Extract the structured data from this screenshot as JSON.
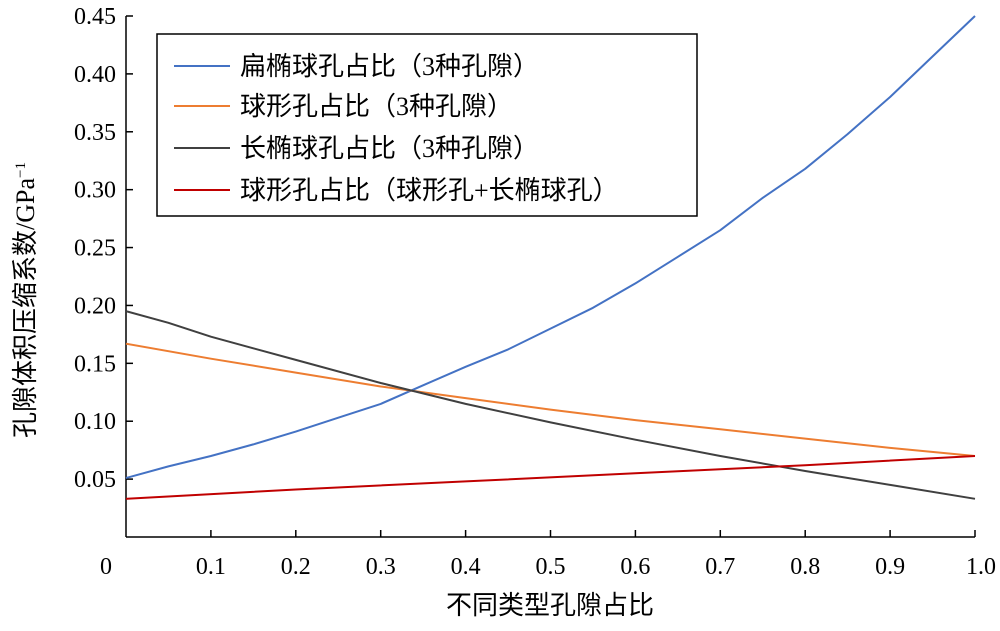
{
  "chart_data": {
    "type": "line",
    "xlabel": "不同类型孔隙占比",
    "ylabel": "孔隙体积压缩系数/GPa",
    "ylabel_sup": "−1",
    "xlim": [
      0,
      1.0
    ],
    "ylim": [
      0,
      0.45
    ],
    "x_ticks": [
      "0",
      "0.1",
      "0.2",
      "0.3",
      "0.4",
      "0.5",
      "0.6",
      "0.7",
      "0.8",
      "0.9",
      "1.0"
    ],
    "x_tick_values": [
      0,
      0.1,
      0.2,
      0.3,
      0.4,
      0.5,
      0.6,
      0.7,
      0.8,
      0.9,
      1.0
    ],
    "y_ticks": [
      "0.05",
      "0.10",
      "0.15",
      "0.20",
      "0.25",
      "0.30",
      "0.35",
      "0.40",
      "0.45"
    ],
    "y_tick_values": [
      0.05,
      0.1,
      0.15,
      0.2,
      0.25,
      0.3,
      0.35,
      0.4,
      0.45
    ],
    "grid": false,
    "legend_position": "top-left",
    "series": [
      {
        "name": "扁椭球孔占比（3种孔隙）",
        "color": "#4472C4",
        "x": [
          0,
          0.05,
          0.1,
          0.15,
          0.2,
          0.25,
          0.3,
          0.35,
          0.4,
          0.45,
          0.5,
          0.55,
          0.6,
          0.65,
          0.7,
          0.75,
          0.8,
          0.85,
          0.9,
          0.95,
          1.0
        ],
        "y": [
          0.051,
          0.061,
          0.07,
          0.08,
          0.091,
          0.103,
          0.115,
          0.131,
          0.147,
          0.162,
          0.18,
          0.198,
          0.219,
          0.242,
          0.265,
          0.293,
          0.318,
          0.348,
          0.38,
          0.415,
          0.45
        ]
      },
      {
        "name": "球形孔占比（3种孔隙）",
        "color": "#ED7D31",
        "x": [
          0,
          0.1,
          0.2,
          0.3,
          0.4,
          0.5,
          0.6,
          0.7,
          0.8,
          0.9,
          1.0
        ],
        "y": [
          0.167,
          0.154,
          0.142,
          0.13,
          0.12,
          0.11,
          0.101,
          0.093,
          0.085,
          0.077,
          0.07
        ]
      },
      {
        "name": "长椭球孔占比（3种孔隙）",
        "color": "#404040",
        "x": [
          0,
          0.05,
          0.1,
          0.15,
          0.2,
          0.3,
          0.4,
          0.5,
          0.6,
          0.7,
          0.8,
          0.9,
          1.0
        ],
        "y": [
          0.195,
          0.185,
          0.173,
          0.163,
          0.153,
          0.133,
          0.115,
          0.099,
          0.084,
          0.07,
          0.057,
          0.045,
          0.033
        ]
      },
      {
        "name": "球形孔占比（球形孔+长椭球孔）",
        "color": "#C00000",
        "x": [
          0,
          0.2,
          0.4,
          0.6,
          0.8,
          1.0
        ],
        "y": [
          0.033,
          0.041,
          0.048,
          0.055,
          0.062,
          0.07
        ]
      }
    ]
  }
}
